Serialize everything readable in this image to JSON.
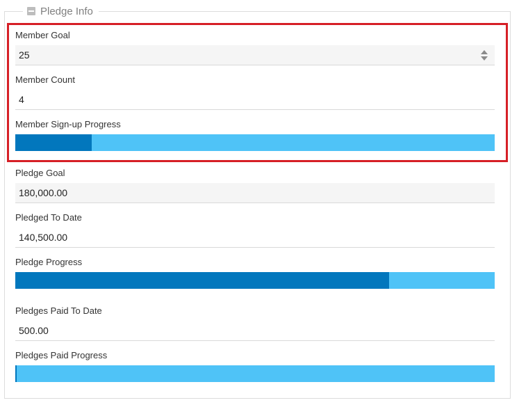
{
  "section": {
    "title": "Pledge Info"
  },
  "member": {
    "goal_label": "Member Goal",
    "goal_value": "25",
    "count_label": "Member Count",
    "count_value": "4",
    "progress_label": "Member Sign-up Progress",
    "progress_fraction": 0.16
  },
  "pledge": {
    "goal_label": "Pledge Goal",
    "goal_value": "180,000.00",
    "to_date_label": "Pledged To Date",
    "to_date_value": "140,500.00",
    "progress_label": "Pledge Progress",
    "progress_fraction": 0.78
  },
  "paid": {
    "to_date_label": "Pledges Paid To Date",
    "to_date_value": "500.00",
    "progress_label": "Pledges Paid Progress",
    "progress_fraction": 0.003
  },
  "colors": {
    "progress_fill": "#0277bd",
    "progress_track": "#4fc3f7",
    "highlight_border": "#d61f26"
  },
  "icons": {
    "collapse": "minus-square-icon",
    "spinner": "spinner-arrows-icon"
  }
}
